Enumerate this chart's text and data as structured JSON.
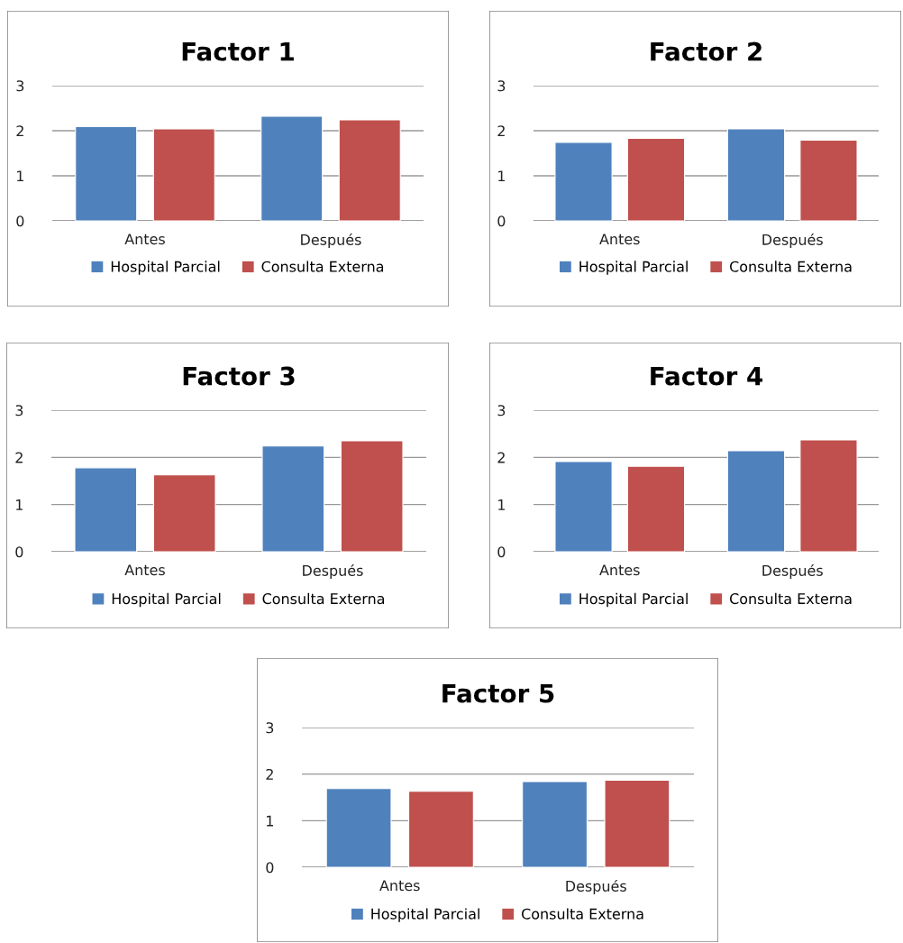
{
  "chart_data": [
    {
      "type": "bar",
      "title": "Factor 1",
      "categories": [
        "Antes",
        "Después"
      ],
      "ylim": [
        0,
        3
      ],
      "yticks": [
        0,
        1,
        2,
        3
      ],
      "grid": "y",
      "legend": "bottom",
      "series": [
        {
          "name": "Hospital Parcial",
          "color": "#4f81bd",
          "values": [
            2.09,
            2.32
          ]
        },
        {
          "name": "Consulta Externa",
          "color": "#c0504d",
          "values": [
            2.04,
            2.24
          ]
        }
      ]
    },
    {
      "type": "bar",
      "title": "Factor 2",
      "categories": [
        "Antes",
        "Después"
      ],
      "ylim": [
        0,
        3
      ],
      "yticks": [
        0,
        1,
        2,
        3
      ],
      "grid": "y",
      "legend": "bottom",
      "series": [
        {
          "name": "Hospital Parcial",
          "color": "#4f81bd",
          "values": [
            1.74,
            2.04
          ]
        },
        {
          "name": "Consulta Externa",
          "color": "#c0504d",
          "values": [
            1.83,
            1.79
          ]
        }
      ]
    },
    {
      "type": "bar",
      "title": "Factor 3",
      "categories": [
        "Antes",
        "Después"
      ],
      "ylim": [
        0,
        3
      ],
      "yticks": [
        0,
        1,
        2,
        3
      ],
      "grid": "y",
      "legend": "bottom",
      "series": [
        {
          "name": "Hospital Parcial",
          "color": "#4f81bd",
          "values": [
            1.78,
            2.24
          ]
        },
        {
          "name": "Consulta Externa",
          "color": "#c0504d",
          "values": [
            1.63,
            2.35
          ]
        }
      ]
    },
    {
      "type": "bar",
      "title": "Factor 4",
      "categories": [
        "Antes",
        "Después"
      ],
      "ylim": [
        0,
        3
      ],
      "yticks": [
        0,
        1,
        2,
        3
      ],
      "grid": "y",
      "legend": "bottom",
      "series": [
        {
          "name": "Hospital Parcial",
          "color": "#4f81bd",
          "values": [
            1.91,
            2.14
          ]
        },
        {
          "name": "Consulta Externa",
          "color": "#c0504d",
          "values": [
            1.81,
            2.37
          ]
        }
      ]
    },
    {
      "type": "bar",
      "title": "Factor 5",
      "categories": [
        "Antes",
        "Después"
      ],
      "ylim": [
        0,
        3
      ],
      "yticks": [
        0,
        1,
        2,
        3
      ],
      "grid": "y",
      "legend": "bottom",
      "series": [
        {
          "name": "Hospital Parcial",
          "color": "#4f81bd",
          "values": [
            1.69,
            1.84
          ]
        },
        {
          "name": "Consulta Externa",
          "color": "#c0504d",
          "values": [
            1.63,
            1.87
          ]
        }
      ]
    }
  ]
}
